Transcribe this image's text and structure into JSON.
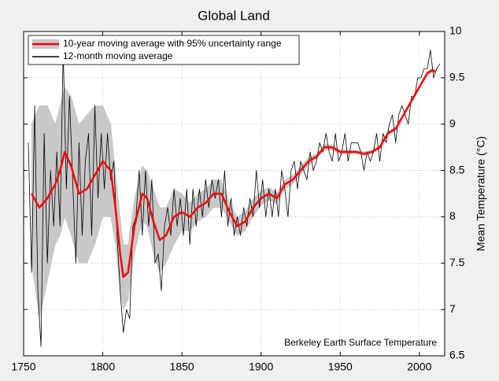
{
  "chart_data": {
    "type": "line",
    "title": "Global Land",
    "y_label": "Mean Temperature (°C)",
    "annotation": "Berkeley Earth Surface Temperature",
    "xlim": [
      1750,
      2016
    ],
    "ylim": [
      6.5,
      10
    ],
    "xticks": [
      1750,
      1800,
      1850,
      1900,
      1950,
      2000
    ],
    "yticks": [
      6.5,
      7,
      7.5,
      8,
      8.5,
      9,
      9.5,
      10
    ],
    "y_axis_side": "right",
    "grid": true,
    "legend": "upper-left",
    "series": [
      {
        "name": "10-year moving average with 95% uncertainty range",
        "color": "#ff0000",
        "band_color": "#c8c8c8",
        "x": [
          1755,
          1760,
          1765,
          1770,
          1773,
          1776,
          1780,
          1785,
          1790,
          1795,
          1800,
          1805,
          1808,
          1811,
          1813,
          1816,
          1820,
          1825,
          1828,
          1832,
          1836,
          1840,
          1845,
          1850,
          1855,
          1860,
          1865,
          1870,
          1875,
          1880,
          1885,
          1890,
          1895,
          1900,
          1905,
          1910,
          1915,
          1920,
          1925,
          1930,
          1935,
          1940,
          1945,
          1950,
          1955,
          1960,
          1965,
          1970,
          1975,
          1980,
          1985,
          1990,
          1995,
          2000,
          2005,
          2008,
          2010
        ],
        "values": [
          8.25,
          8.1,
          8.2,
          8.35,
          8.5,
          8.7,
          8.55,
          8.25,
          8.3,
          8.45,
          8.6,
          8.5,
          8.1,
          7.6,
          7.35,
          7.4,
          7.9,
          8.25,
          8.2,
          7.95,
          7.75,
          7.8,
          8.0,
          8.05,
          8.0,
          8.1,
          8.15,
          8.25,
          8.25,
          8.05,
          7.9,
          7.95,
          8.1,
          8.2,
          8.25,
          8.2,
          8.35,
          8.4,
          8.5,
          8.6,
          8.65,
          8.75,
          8.75,
          8.7,
          8.7,
          8.7,
          8.68,
          8.7,
          8.75,
          8.9,
          8.95,
          9.1,
          9.25,
          9.4,
          9.55,
          9.58,
          9.57
        ],
        "lower": [
          7.5,
          6.9,
          7.3,
          7.7,
          7.8,
          8.0,
          7.8,
          7.5,
          7.5,
          7.7,
          8.0,
          8.0,
          7.7,
          7.2,
          7.0,
          7.1,
          7.6,
          7.95,
          7.9,
          7.6,
          7.4,
          7.5,
          7.7,
          7.85,
          7.85,
          7.95,
          8.0,
          8.1,
          8.1,
          7.95,
          7.8,
          7.85,
          8.0,
          8.12,
          8.18,
          8.14,
          8.3,
          8.35,
          8.45,
          8.56,
          8.62,
          8.72,
          8.72,
          8.68,
          8.68,
          8.68,
          8.66,
          8.68,
          8.73,
          8.88,
          8.93,
          9.08,
          9.23,
          9.38,
          9.53,
          9.56,
          9.55
        ],
        "upper": [
          9.0,
          9.2,
          9.2,
          9.0,
          9.2,
          9.4,
          9.3,
          9.0,
          9.1,
          9.2,
          9.2,
          9.0,
          8.5,
          8.0,
          7.7,
          7.7,
          8.2,
          8.55,
          8.5,
          8.3,
          8.1,
          8.1,
          8.3,
          8.25,
          8.15,
          8.25,
          8.3,
          8.4,
          8.4,
          8.15,
          8.0,
          8.05,
          8.2,
          8.28,
          8.32,
          8.26,
          8.4,
          8.45,
          8.55,
          8.64,
          8.68,
          8.78,
          8.78,
          8.72,
          8.72,
          8.72,
          8.7,
          8.72,
          8.77,
          8.92,
          8.97,
          9.12,
          9.27,
          9.42,
          9.57,
          9.6,
          9.59
        ]
      },
      {
        "name": "12-month moving average",
        "color": "#000000",
        "x": [
          1753,
          1755,
          1757,
          1759,
          1761,
          1763,
          1765,
          1767,
          1769,
          1771,
          1773,
          1775,
          1777,
          1779,
          1781,
          1783,
          1785,
          1787,
          1789,
          1791,
          1793,
          1795,
          1797,
          1799,
          1801,
          1803,
          1805,
          1807,
          1809,
          1811,
          1813,
          1815,
          1817,
          1819,
          1821,
          1823,
          1825,
          1827,
          1829,
          1831,
          1833,
          1835,
          1837,
          1839,
          1841,
          1843,
          1845,
          1847,
          1849,
          1851,
          1853,
          1855,
          1857,
          1859,
          1861,
          1863,
          1865,
          1867,
          1869,
          1871,
          1873,
          1875,
          1877,
          1879,
          1881,
          1883,
          1885,
          1887,
          1889,
          1891,
          1893,
          1895,
          1897,
          1899,
          1901,
          1903,
          1905,
          1907,
          1909,
          1911,
          1913,
          1915,
          1917,
          1919,
          1921,
          1923,
          1925,
          1927,
          1929,
          1931,
          1933,
          1935,
          1937,
          1939,
          1941,
          1943,
          1945,
          1947,
          1949,
          1951,
          1953,
          1955,
          1957,
          1959,
          1961,
          1963,
          1965,
          1967,
          1969,
          1971,
          1973,
          1975,
          1977,
          1979,
          1981,
          1983,
          1985,
          1987,
          1989,
          1991,
          1993,
          1995,
          1997,
          1999,
          2001,
          2003,
          2005,
          2007,
          2009,
          2011,
          2013
        ],
        "values": [
          8.8,
          7.4,
          9.2,
          7.2,
          6.6,
          8.9,
          7.5,
          8.5,
          7.9,
          8.7,
          7.9,
          9.8,
          8.3,
          9.3,
          8.4,
          7.5,
          8.8,
          7.8,
          8.6,
          8.9,
          7.8,
          9.2,
          8.2,
          8.9,
          8.3,
          8.9,
          8.4,
          8.6,
          7.8,
          7.2,
          6.75,
          7.0,
          6.9,
          7.9,
          8.0,
          8.5,
          7.8,
          8.5,
          7.9,
          8.4,
          7.5,
          7.6,
          7.2,
          7.9,
          8.1,
          7.8,
          8.3,
          7.9,
          8.2,
          7.8,
          8.3,
          7.7,
          8.3,
          7.9,
          8.3,
          8.0,
          8.4,
          8.1,
          8.4,
          8.2,
          8.4,
          8.0,
          8.5,
          7.9,
          8.2,
          7.8,
          8.0,
          7.8,
          8.1,
          7.9,
          8.2,
          8.0,
          8.5,
          8.1,
          8.4,
          8.0,
          8.3,
          8.0,
          8.3,
          8.0,
          8.5,
          8.3,
          8.0,
          8.5,
          8.6,
          8.3,
          8.6,
          8.5,
          8.4,
          8.7,
          8.5,
          8.6,
          8.8,
          8.7,
          8.9,
          8.7,
          8.6,
          8.9,
          8.6,
          8.7,
          8.9,
          8.6,
          8.8,
          8.8,
          8.8,
          8.7,
          8.5,
          8.7,
          8.6,
          8.7,
          8.9,
          8.6,
          8.9,
          8.8,
          9.0,
          9.1,
          8.8,
          9.1,
          9.2,
          9.1,
          9.0,
          9.3,
          9.3,
          9.5,
          9.5,
          9.6,
          9.6,
          9.8,
          9.5,
          9.6,
          9.65
        ]
      }
    ]
  }
}
